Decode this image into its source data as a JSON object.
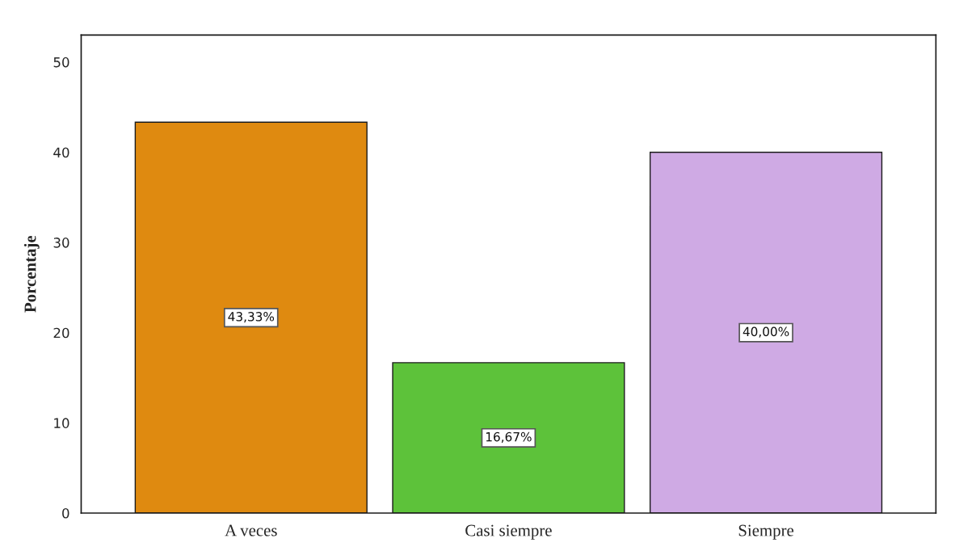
{
  "chart_data": {
    "type": "bar",
    "ylabel": "Porcentaje",
    "categories": [
      "A veces",
      "Casi siempre",
      "Siempre"
    ],
    "values": [
      43.33,
      16.67,
      40.0
    ],
    "colors": [
      "#df8a10",
      "#5dc23a",
      "#cfaae4"
    ],
    "value_labels": [
      "43,33%",
      "16,67%",
      "40,00%"
    ],
    "ylim": [
      0,
      53
    ],
    "yticks": [
      0,
      10,
      20,
      30,
      40,
      50
    ]
  }
}
